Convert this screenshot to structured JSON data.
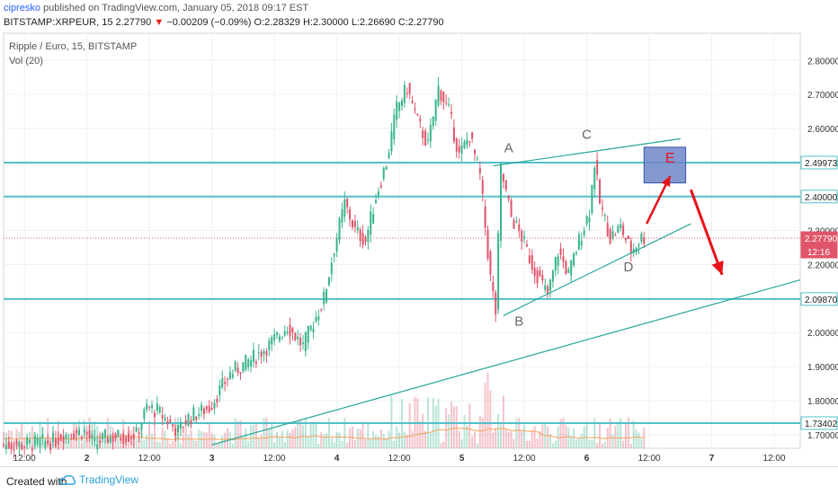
{
  "header": {
    "user": "cipresko",
    "published": "published on TradingView.com, January 05, 2018 09:17 EST",
    "symbol": "BITSTAMP:XRPEUR, 15",
    "last": "2.27790",
    "arrow": "▼",
    "change": "−0.00209 (−0.09%)",
    "o_label": "O:",
    "o_value": "2.28329",
    "h_label": "H:",
    "h_value": "2.30000",
    "l_label": "L:",
    "l_value": "2.26690",
    "c_label": "C:",
    "c_value": "2.27790"
  },
  "legend": {
    "title": "Ripple / Euro, 15, BITSTAMP",
    "volume": "Vol (20)"
  },
  "footer": {
    "created": "Created with",
    "brand": "TradingView",
    "logo_icon": "tradingview-cloud-icon"
  },
  "colors": {
    "up": "#3bb58a",
    "down": "#e0556a",
    "hline": "#52c0c8",
    "trend": "#26a69a",
    "annotation": "#e8111a",
    "box_fill": "#6f86c8",
    "box_stroke": "#3a55a8",
    "price_line": "#e0556a"
  },
  "chart_data": {
    "type": "candlestick",
    "y_range": [
      1.66,
      2.88
    ],
    "y_ticks": [
      "2.80000",
      "2.70000",
      "2.60000",
      "2.50000",
      "2.40000",
      "2.30000",
      "2.20000",
      "2.10000",
      "2.00000",
      "1.90000",
      "1.80000",
      "1.70000"
    ],
    "y_tick_values": [
      2.8,
      2.7,
      2.6,
      2.5,
      2.4,
      2.3,
      2.2,
      2.1,
      2.0,
      1.9,
      1.8,
      1.7
    ],
    "x_ticks": [
      "12:00",
      "2",
      "12:00",
      "3",
      "12:00",
      "4",
      "12:00",
      "5",
      "12:00",
      "6",
      "12:00",
      "7",
      "12:00"
    ],
    "x_tick_hours": [
      12,
      24,
      36,
      48,
      60,
      72,
      84,
      96,
      108,
      120,
      132,
      144,
      156
    ],
    "x_domain_hours": [
      8,
      161
    ],
    "price_labels": [
      {
        "text": "2.49973",
        "value": 2.49973,
        "style": "line"
      },
      {
        "text": "2.40000",
        "value": 2.4,
        "style": "line"
      },
      {
        "text": "2.27790",
        "value": 2.2779,
        "style": "last"
      },
      {
        "text": "12:16",
        "value": 2.2779,
        "style": "countdown"
      },
      {
        "text": "2.09870",
        "value": 2.0987,
        "style": "line"
      },
      {
        "text": "1.73402",
        "value": 1.73402,
        "style": "line"
      }
    ],
    "horizontal_lines": [
      2.49973,
      2.4,
      2.0987,
      1.73402
    ],
    "last_price": 2.2779,
    "price_path": [
      [
        8,
        1.67
      ],
      [
        12,
        1.67
      ],
      [
        18,
        1.68
      ],
      [
        20,
        1.7
      ],
      [
        24,
        1.71
      ],
      [
        26,
        1.67
      ],
      [
        28,
        1.69
      ],
      [
        34,
        1.7
      ],
      [
        36,
        1.78
      ],
      [
        38,
        1.77
      ],
      [
        40,
        1.74
      ],
      [
        42,
        1.71
      ],
      [
        44,
        1.75
      ],
      [
        48,
        1.78
      ],
      [
        52,
        1.88
      ],
      [
        56,
        1.92
      ],
      [
        60,
        1.97
      ],
      [
        63,
        2.02
      ],
      [
        66,
        1.96
      ],
      [
        70,
        2.1
      ],
      [
        72,
        2.25
      ],
      [
        74,
        2.38
      ],
      [
        76,
        2.3
      ],
      [
        78,
        2.27
      ],
      [
        80,
        2.4
      ],
      [
        82,
        2.5
      ],
      [
        84,
        2.66
      ],
      [
        86,
        2.72
      ],
      [
        88,
        2.62
      ],
      [
        90,
        2.55
      ],
      [
        92,
        2.72
      ],
      [
        94,
        2.65
      ],
      [
        96,
        2.52
      ],
      [
        98,
        2.58
      ],
      [
        100,
        2.46
      ],
      [
        102,
        2.16
      ],
      [
        103,
        2.06
      ],
      [
        104,
        2.48
      ],
      [
        106,
        2.34
      ],
      [
        108,
        2.28
      ],
      [
        110,
        2.2
      ],
      [
        112,
        2.14
      ],
      [
        113,
        2.11
      ],
      [
        115,
        2.24
      ],
      [
        117,
        2.17
      ],
      [
        119,
        2.27
      ],
      [
        121,
        2.36
      ],
      [
        122,
        2.5
      ],
      [
        123,
        2.38
      ],
      [
        125,
        2.28
      ],
      [
        127,
        2.31
      ],
      [
        129,
        2.24
      ],
      [
        131,
        2.28
      ]
    ],
    "trend_lines": [
      {
        "from": [
          48,
          1.67
        ],
        "to": [
          161,
          2.155
        ]
      },
      {
        "from": [
          102,
          2.49
        ],
        "to": [
          138,
          2.57
        ]
      },
      {
        "from": [
          104,
          2.05
        ],
        "to": [
          140,
          2.32
        ]
      }
    ],
    "annotations": [
      {
        "text": "A",
        "at": [
          105,
          2.53
        ]
      },
      {
        "text": "B",
        "at": [
          107,
          2.02
        ]
      },
      {
        "text": "C",
        "at": [
          120,
          2.57
        ]
      },
      {
        "text": "D",
        "at": [
          128,
          2.18
        ]
      },
      {
        "text": "E",
        "at": [
          136,
          2.5
        ]
      }
    ],
    "rectangle": {
      "from": [
        131,
        2.545
      ],
      "to": [
        139,
        2.44
      ]
    },
    "arrows": [
      {
        "from": [
          131.5,
          2.32
        ],
        "to": [
          136,
          2.46
        ]
      },
      {
        "from": [
          140,
          2.42
        ],
        "to": [
          146,
          2.17
        ]
      }
    ]
  }
}
